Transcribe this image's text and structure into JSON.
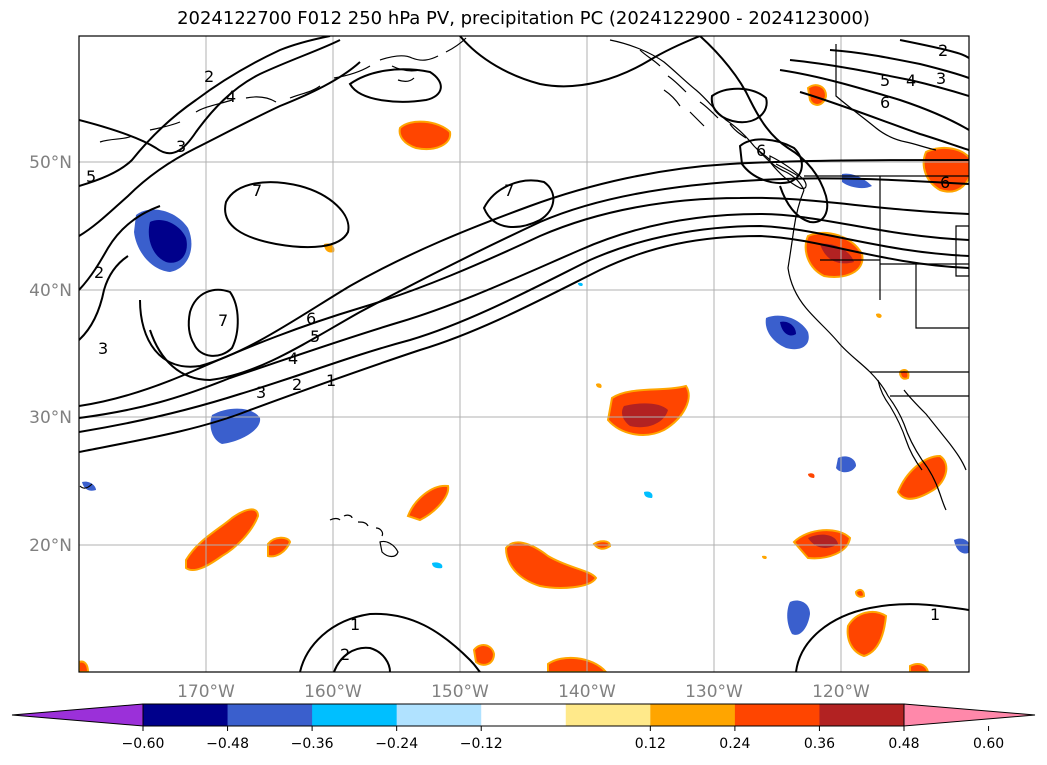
{
  "title": "2024122700 F012 250 hPa PV, precipitation PC (2024122900 - 2024123000)",
  "lon_labels": [
    "170°W",
    "160°W",
    "150°W",
    "140°W",
    "130°W",
    "120°W"
  ],
  "lat_labels": [
    "50°N",
    "40°N",
    "30°N",
    "20°N"
  ],
  "contour_labels": [
    "1",
    "2",
    "3",
    "4",
    "5",
    "6",
    "7"
  ],
  "colorbar": {
    "ticks": [
      "−0.60",
      "−0.48",
      "−0.36",
      "−0.24",
      "−0.12",
      "0.12",
      "0.24",
      "0.36",
      "0.48",
      "0.60"
    ],
    "colors": [
      "#9b30d9",
      "#00008b",
      "#3a5fcd",
      "#00bfff",
      "#b0e2ff",
      "#ffffff",
      "#ffe98a",
      "#ffa500",
      "#ff4500",
      "#b22222",
      "#ff88aa"
    ]
  },
  "colors": {
    "land_line": "#000000",
    "grid": "#b0b0b0",
    "contour": "#000000"
  }
}
